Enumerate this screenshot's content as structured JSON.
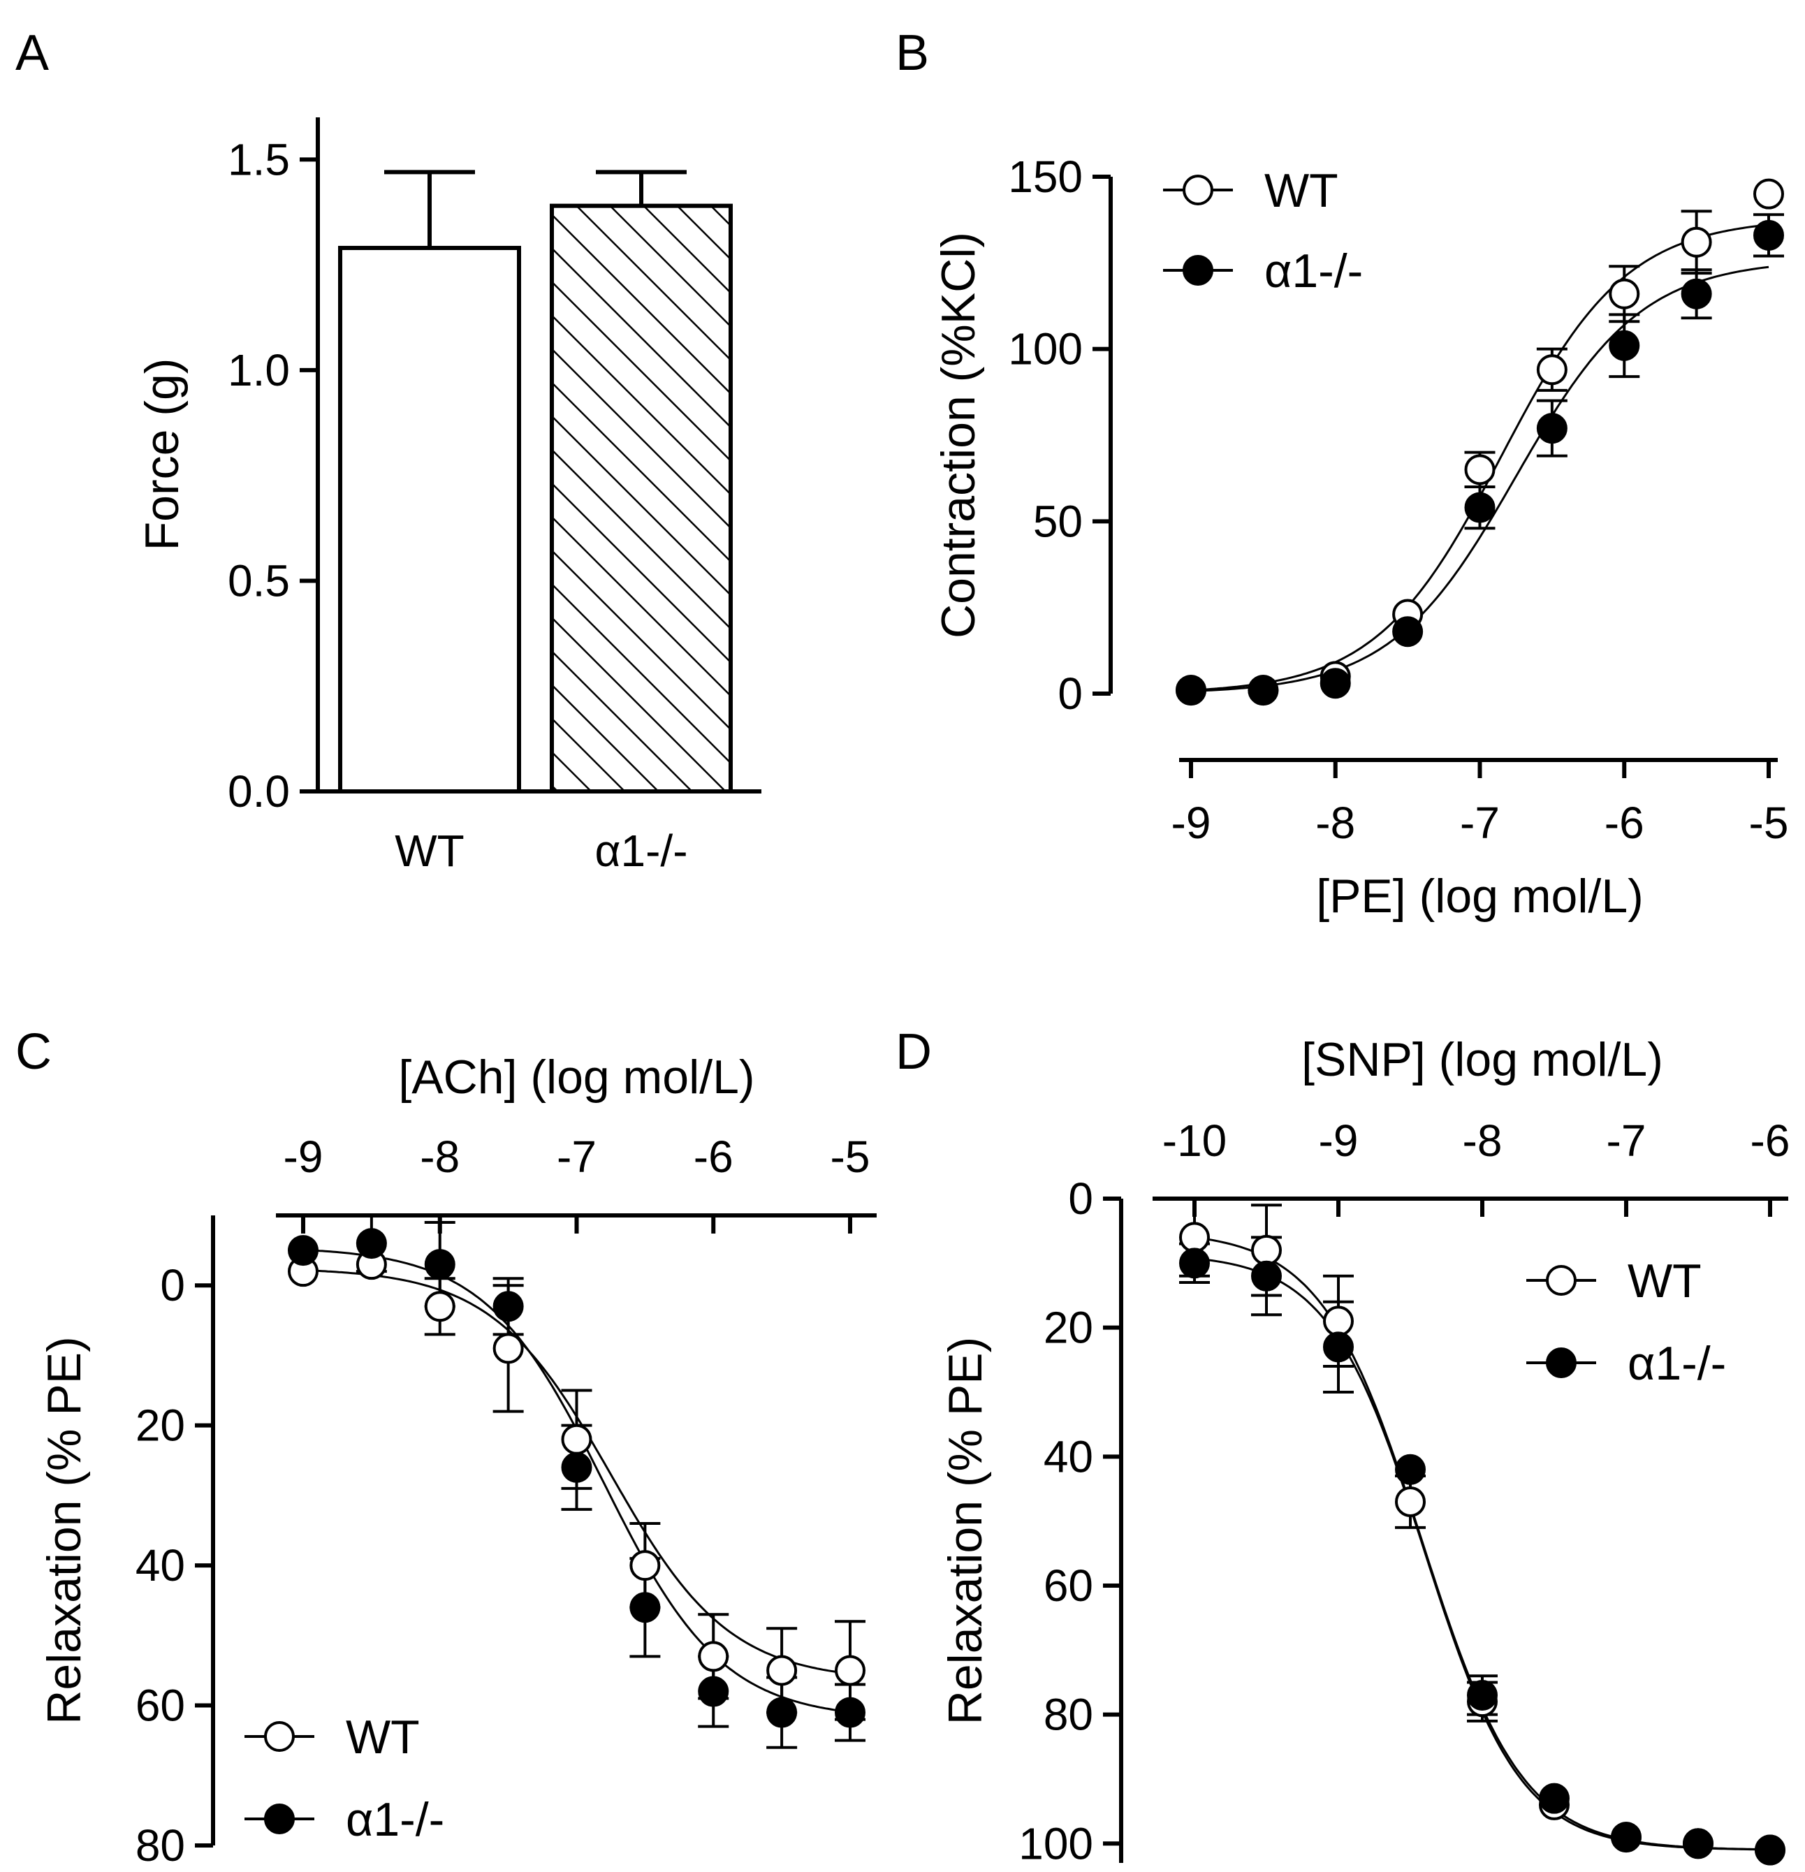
{
  "chart_data": [
    {
      "panel": "A",
      "type": "bar",
      "categories": [
        "WT",
        "α1-/-"
      ],
      "values": [
        1.29,
        1.39
      ],
      "errors": [
        0.18,
        0.08
      ],
      "fills": [
        "open",
        "hatched"
      ],
      "xlabel": "",
      "ylabel": "Force (g)",
      "ylim": [
        0,
        1.6
      ],
      "yticks": [
        0.0,
        0.5,
        1.0,
        1.5
      ],
      "ytick_labels": [
        "0.0",
        "0.5",
        "1.0",
        "1.5"
      ]
    },
    {
      "panel": "B",
      "type": "line",
      "xlabel": "[PE] (log mol/L)",
      "ylabel": "Contraction (%KCl)",
      "xlim": [
        -9,
        -5
      ],
      "ylim": [
        0,
        150
      ],
      "xticks": [
        -9,
        -8,
        -7,
        -6,
        -5
      ],
      "xtick_labels": [
        "-9",
        "-8",
        "-7",
        "-6",
        "-5"
      ],
      "yticks": [
        0,
        50,
        100,
        150
      ],
      "ytick_labels": [
        "0",
        "50",
        "100",
        "150"
      ],
      "legend_position": "top-left",
      "series": [
        {
          "name": "WT",
          "marker": "open-circle",
          "x": [
            -9,
            -8.5,
            -8,
            -7.5,
            -7,
            -6.5,
            -6,
            -5.5,
            -5
          ],
          "y": [
            1,
            1,
            5,
            23,
            65,
            94,
            116,
            131,
            145
          ],
          "err": [
            0,
            0,
            0,
            0,
            5,
            6,
            8,
            9,
            0
          ]
        },
        {
          "name": "α1-/-",
          "marker": "filled-circle",
          "x": [
            -9,
            -8.5,
            -8,
            -7.5,
            -7,
            -6.5,
            -6,
            -5.5,
            -5
          ],
          "y": [
            1,
            1,
            3,
            18,
            54,
            77,
            101,
            116,
            133
          ],
          "err": [
            0,
            0,
            0,
            0,
            6,
            8,
            9,
            7,
            6
          ]
        }
      ],
      "fit_curves": [
        {
          "name": "WT",
          "bottom": 0,
          "top": 138,
          "log_ec50": -6.85,
          "hill": 1.0
        },
        {
          "name": "α1-/-",
          "bottom": 0,
          "top": 126,
          "log_ec50": -6.75,
          "hill": 1.0
        }
      ]
    },
    {
      "panel": "C",
      "type": "line",
      "xlabel": "[ACh] (log mol/L)",
      "ylabel": "Relaxation (% PE)",
      "xlim": [
        -9,
        -5
      ],
      "ylim": [
        80,
        -10
      ],
      "y_inverted": true,
      "xticks": [
        -9,
        -8,
        -7,
        -6,
        -5
      ],
      "xtick_labels": [
        "-9",
        "-8",
        "-7",
        "-6",
        "-5"
      ],
      "yticks": [
        0,
        20,
        40,
        60,
        80
      ],
      "ytick_labels": [
        "0",
        "20",
        "40",
        "60",
        "80"
      ],
      "legend_position": "bottom-left",
      "series": [
        {
          "name": "WT",
          "marker": "open-circle",
          "x": [
            -9,
            -8.5,
            -8,
            -7.5,
            -7,
            -6.5,
            -6,
            -5.5,
            -5
          ],
          "y": [
            -2,
            -3,
            3,
            9,
            22,
            40,
            53,
            55,
            55
          ],
          "err": [
            0,
            0,
            4,
            9,
            7,
            6,
            6,
            6,
            7
          ]
        },
        {
          "name": "α1-/-",
          "marker": "filled-circle",
          "x": [
            -9,
            -8.5,
            -8,
            -7.5,
            -7,
            -6.5,
            -6,
            -5.5,
            -5
          ],
          "y": [
            -5,
            -6,
            -3,
            3,
            26,
            46,
            58,
            61,
            61
          ],
          "err": [
            0,
            4,
            6,
            4,
            6,
            7,
            5,
            5,
            4
          ]
        }
      ],
      "fit_curves": [
        {
          "name": "WT",
          "bottom": -2.5,
          "top": 56.5,
          "log_ec50": -6.75,
          "hill": 1.0
        },
        {
          "name": "α1-/-",
          "bottom": -5.5,
          "top": 62,
          "log_ec50": -6.8,
          "hill": 1.0
        }
      ]
    },
    {
      "panel": "D",
      "type": "line",
      "xlabel": "[SNP] (log mol/L)",
      "ylabel": "Relaxation (% PE)",
      "xlim": [
        -10,
        -6
      ],
      "ylim": [
        103,
        0
      ],
      "y_inverted": true,
      "xticks": [
        -10,
        -9,
        -8,
        -7,
        -6
      ],
      "xtick_labels": [
        "-10",
        "-9",
        "-8",
        "-7",
        "-6"
      ],
      "yticks": [
        0,
        20,
        40,
        60,
        80,
        100
      ],
      "ytick_labels": [
        "0",
        "20",
        "40",
        "60",
        "80",
        "100"
      ],
      "legend_position": "top-right",
      "series": [
        {
          "name": "WT",
          "marker": "open-circle",
          "x": [
            -10,
            -9.5,
            -9,
            -8.5,
            -8,
            -7.5,
            -7,
            -6.5,
            -6
          ],
          "y": [
            6,
            8,
            19,
            47,
            78,
            94,
            99,
            100,
            101
          ],
          "err": [
            6,
            7,
            7,
            4,
            3,
            0,
            0,
            0,
            0
          ]
        },
        {
          "name": "α1-/-",
          "marker": "filled-circle",
          "x": [
            -10,
            -9.5,
            -9,
            -8.5,
            -8,
            -7.5,
            -7,
            -6.5,
            -6
          ],
          "y": [
            10,
            12,
            23,
            42,
            77,
            93,
            99,
            100,
            101
          ],
          "err": [
            3,
            6,
            7,
            0,
            3,
            0,
            0,
            0,
            0
          ]
        }
      ],
      "fit_curves": [
        {
          "name": "WT",
          "bottom": 5,
          "top": 101,
          "log_ec50": -8.42,
          "hill": 1.25
        },
        {
          "name": "α1-/-",
          "bottom": 8.5,
          "top": 101,
          "log_ec50": -8.4,
          "hill": 1.3
        }
      ]
    }
  ],
  "panel_letters": [
    "A",
    "B",
    "C",
    "D"
  ]
}
